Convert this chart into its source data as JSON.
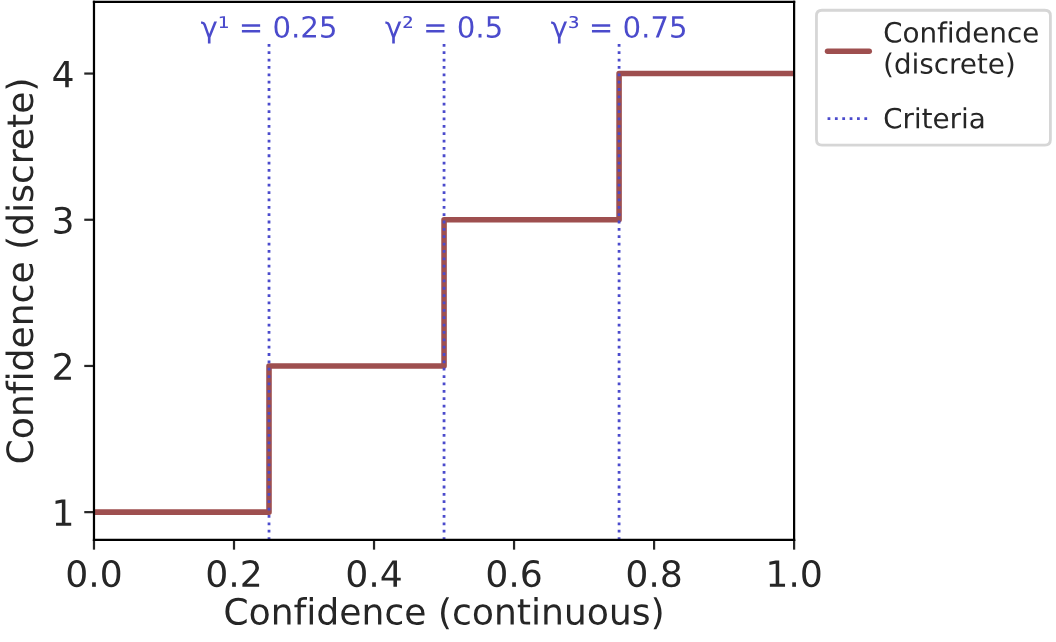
{
  "chart_data": {
    "type": "step",
    "xlabel": "Confidence (continuous)",
    "ylabel": "Confidence (discrete)",
    "x": [
      0,
      0.25,
      0.5,
      0.75,
      1.0
    ],
    "series": [
      {
        "name": "Confidence\n(discrete)",
        "color": "#9e4f4f",
        "values": [
          1,
          2,
          3,
          4,
          4
        ]
      }
    ],
    "ref_lines": [
      {
        "axis": "x",
        "value": 0.25,
        "label": "γ¹ = 0.25",
        "color": "#4b4bcc",
        "line_style": "dotted"
      },
      {
        "axis": "x",
        "value": 0.5,
        "label": "γ² = 0.5",
        "color": "#4b4bcc",
        "line_style": "dotted"
      },
      {
        "axis": "x",
        "value": 0.75,
        "label": "γ³ = 0.75",
        "color": "#4b4bcc",
        "line_style": "dotted"
      }
    ],
    "legend_title": null,
    "annotations": [
      "Criteria"
    ],
    "xlim": [
      0,
      1.0
    ],
    "xticks": [
      {
        "value": 0,
        "label": "0.0"
      },
      0.2,
      0.4,
      0.6,
      0.8,
      {
        "value": 1.0,
        "label": "1.0"
      }
    ],
    "ylim": [
      0.81,
      4.49
    ],
    "yticks": [
      1,
      2,
      3,
      4
    ],
    "grid": false,
    "legend": "top right",
    "line_style": "solid",
    "marker": "none"
  }
}
